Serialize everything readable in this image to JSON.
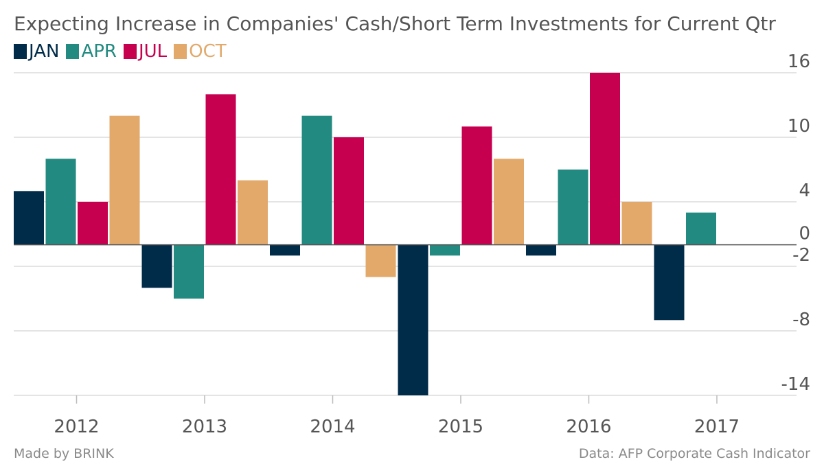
{
  "chart_data": {
    "type": "bar",
    "title": "Expecting Increase in Companies' Cash/Short Term Investments for Current Qtr",
    "xlabel": "",
    "ylabel": "",
    "categories": [
      "2012",
      "2013",
      "2014",
      "2015",
      "2016",
      "2017"
    ],
    "series": [
      {
        "name": "JAN",
        "color": "#002B49",
        "values": [
          5,
          -4,
          -1,
          -14,
          -1,
          -7
        ]
      },
      {
        "name": "APR",
        "color": "#228A80",
        "values": [
          8,
          -5,
          12,
          -1,
          7,
          3
        ]
      },
      {
        "name": "JUL",
        "color": "#C6004F",
        "values": [
          4,
          14,
          10,
          11,
          16,
          null
        ]
      },
      {
        "name": "OCT",
        "color": "#E2A96B",
        "values": [
          12,
          6,
          -3,
          8,
          4,
          null
        ]
      }
    ],
    "yticks": [
      16,
      10,
      4,
      0,
      -2,
      -8,
      -14
    ],
    "ylim": [
      -14,
      16
    ],
    "grid": true,
    "legend_position": "top-left",
    "y_axis_position": "right"
  },
  "footer": {
    "source": "Made by BRINK",
    "data_note": "Data: AFP Corporate Cash Indicator"
  }
}
